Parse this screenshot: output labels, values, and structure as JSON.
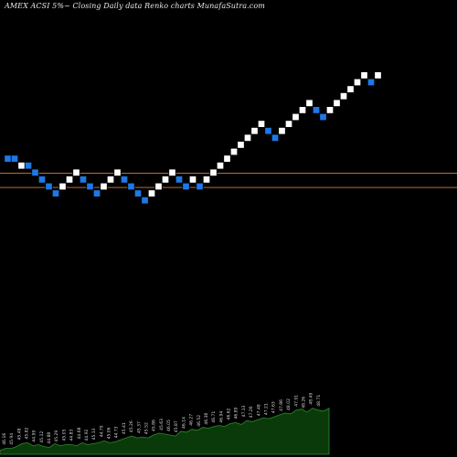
{
  "caption": "AMEX  ACSI 5%~  Closing Daily data  Renko  charts MunafaSutra.com",
  "colors": {
    "background": "#000000",
    "up_brick": "#ffffff",
    "down_brick": "#1e78e6",
    "brick_border": "#000000",
    "reference_line": "#c06a2a",
    "volume_fill": "#0a3a0a",
    "volume_edge": "#2e8a2e",
    "volume_label": "#d8d8d8"
  },
  "chart_data": {
    "type": "renko",
    "title": "AMEX  ACSI 5%~  Closing Daily data  Renko  charts MunafaSutra.com",
    "brick_directions": [
      "down",
      "down",
      "up",
      "down",
      "down",
      "down",
      "down",
      "down",
      "up",
      "up",
      "up",
      "down",
      "down",
      "down",
      "up",
      "up",
      "up",
      "down",
      "down",
      "down",
      "down",
      "up",
      "up",
      "up",
      "up",
      "down",
      "down",
      "up",
      "down",
      "up",
      "up",
      "up",
      "up",
      "up",
      "up",
      "up",
      "up",
      "up",
      "down",
      "down",
      "up",
      "up",
      "up",
      "up",
      "up",
      "down",
      "down",
      "up",
      "up",
      "up",
      "up",
      "up",
      "up",
      "down",
      "up"
    ],
    "brick_levels": [
      4,
      4,
      3,
      3,
      2,
      1,
      0,
      -1,
      0,
      1,
      2,
      1,
      0,
      -1,
      0,
      1,
      2,
      1,
      0,
      -1,
      -2,
      -1,
      0,
      1,
      2,
      1,
      0,
      1,
      0,
      1,
      2,
      3,
      4,
      5,
      6,
      7,
      8,
      9,
      8,
      7,
      8,
      9,
      10,
      11,
      12,
      11,
      10,
      11,
      12,
      13,
      14,
      15,
      16,
      15,
      16
    ],
    "reference_lines": [
      1.9,
      -0.15
    ],
    "volume_area": [
      4,
      6,
      6,
      8,
      11,
      12,
      9,
      10,
      8,
      7,
      11,
      9,
      10,
      10,
      9,
      12,
      10,
      11,
      12,
      14,
      12,
      13,
      15,
      17,
      19,
      17,
      18,
      17,
      20,
      22,
      21,
      20,
      19,
      24,
      23,
      26,
      25,
      28,
      27,
      29,
      30,
      29,
      32,
      33,
      31,
      35,
      34,
      36,
      38,
      37,
      39,
      41,
      43,
      42,
      46,
      47,
      44,
      48,
      46,
      45,
      48
    ],
    "volume_labels": [
      "46.16",
      "45.94",
      "45.48",
      "45.82",
      "44.99",
      "45.12",
      "44.88",
      "45.29",
      "45.05",
      "44.83",
      "44.68",
      "44.92",
      "45.13",
      "44.79",
      "45.06",
      "44.73",
      "45.41",
      "45.26",
      "45.37",
      "45.52",
      "45.86",
      "45.63",
      "46.05",
      "45.87",
      "46.14",
      "46.27",
      "46.52",
      "46.38",
      "46.71",
      "46.94",
      "46.62",
      "46.89",
      "47.13",
      "47.26",
      "47.48",
      "47.21",
      "47.63",
      "47.86",
      "48.02",
      "47.91",
      "48.26",
      "48.49",
      "48.71"
    ]
  }
}
